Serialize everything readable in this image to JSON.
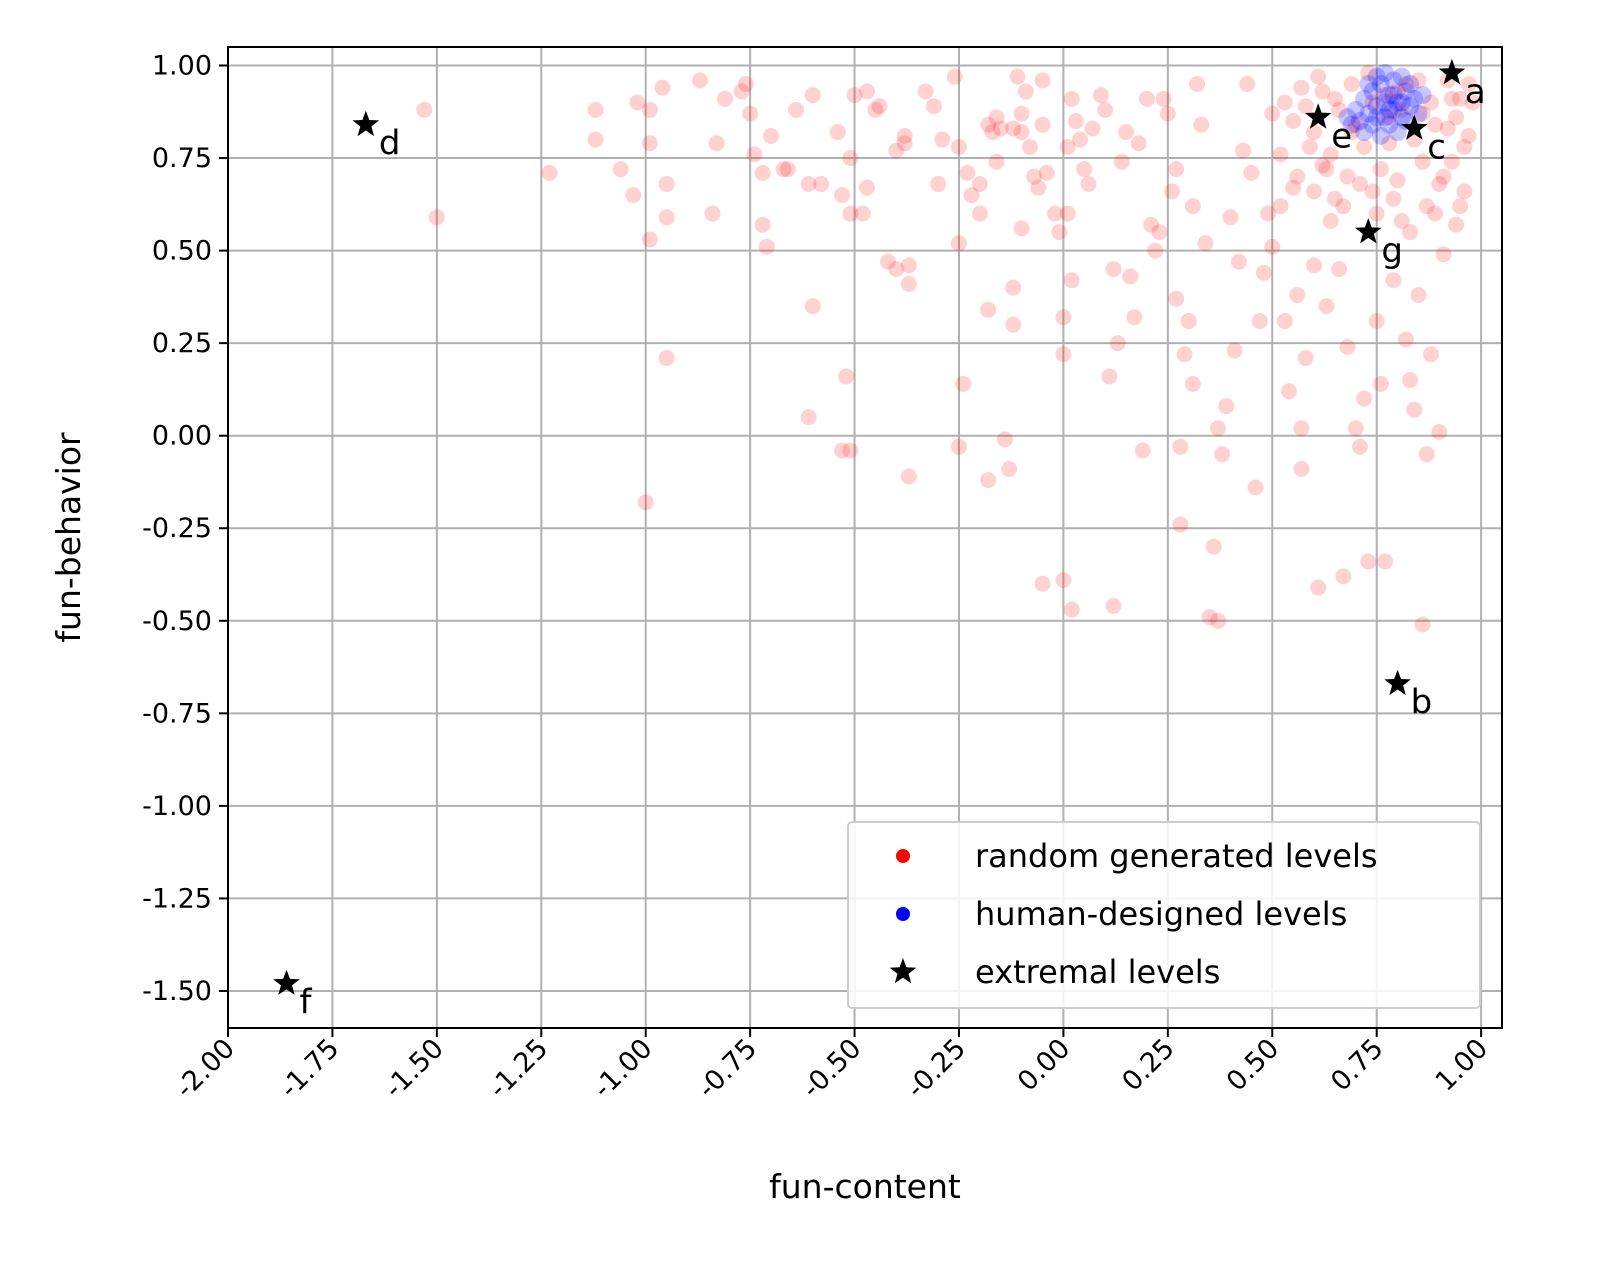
{
  "chart_data": {
    "type": "scatter",
    "title": "",
    "xlabel": "fun-content",
    "ylabel": "fun-behavior",
    "xlim": [
      -2.0,
      1.05
    ],
    "ylim": [
      -1.6,
      1.05
    ],
    "grid": true,
    "legend_position": "bottom-right",
    "x_ticks": [
      -2.0,
      -1.75,
      -1.5,
      -1.25,
      -1.0,
      -0.75,
      -0.5,
      -0.25,
      0.0,
      0.25,
      0.5,
      0.75,
      1.0
    ],
    "x_tick_labels": [
      "-2.00",
      "-1.75",
      "-1.50",
      "-1.25",
      "-1.00",
      "-0.75",
      "-0.50",
      "-0.25",
      "0.00",
      "0.25",
      "0.50",
      "0.75",
      "1.00"
    ],
    "y_ticks": [
      1.0,
      0.75,
      0.5,
      0.25,
      0.0,
      -0.25,
      -0.5,
      -0.75,
      -1.0,
      -1.25,
      -1.5
    ],
    "y_tick_labels": [
      "1.00",
      "0.75",
      "0.50",
      "0.25",
      "0.00",
      "-0.25",
      "-0.50",
      "-0.75",
      "-1.00",
      "-1.25",
      "-1.50"
    ],
    "series": [
      {
        "name": "random generated levels",
        "color": "#ff0000",
        "marker": "circle",
        "alpha": 0.18,
        "points": [
          [
            -1.53,
            0.88
          ],
          [
            -1.5,
            0.59
          ],
          [
            -1.23,
            0.71
          ],
          [
            -1.12,
            0.88
          ],
          [
            -1.12,
            0.8
          ],
          [
            -1.06,
            0.72
          ],
          [
            -1.03,
            0.65
          ],
          [
            -1.02,
            0.9
          ],
          [
            -0.99,
            0.88
          ],
          [
            -0.99,
            0.79
          ],
          [
            -0.99,
            0.53
          ],
          [
            -0.96,
            0.94
          ],
          [
            -0.95,
            0.68
          ],
          [
            -0.95,
            0.59
          ],
          [
            -0.95,
            0.21
          ],
          [
            -1.0,
            -0.18
          ],
          [
            -0.87,
            0.96
          ],
          [
            -0.84,
            0.6
          ],
          [
            -0.83,
            0.79
          ],
          [
            -0.81,
            0.91
          ],
          [
            -0.77,
            0.93
          ],
          [
            -0.76,
            0.95
          ],
          [
            -0.75,
            0.87
          ],
          [
            -0.74,
            0.76
          ],
          [
            -0.72,
            0.71
          ],
          [
            -0.72,
            0.57
          ],
          [
            -0.71,
            0.51
          ],
          [
            -0.7,
            0.81
          ],
          [
            -0.67,
            0.72
          ],
          [
            -0.66,
            0.72
          ],
          [
            -0.64,
            0.88
          ],
          [
            -0.61,
            0.68
          ],
          [
            -0.6,
            0.92
          ],
          [
            -0.6,
            0.35
          ],
          [
            -0.61,
            0.05
          ],
          [
            -0.58,
            0.68
          ],
          [
            -0.54,
            0.82
          ],
          [
            -0.53,
            0.65
          ],
          [
            -0.51,
            0.75
          ],
          [
            -0.51,
            0.6
          ],
          [
            -0.52,
            0.16
          ],
          [
            -0.51,
            -0.04
          ],
          [
            -0.53,
            -0.04
          ],
          [
            -0.5,
            0.92
          ],
          [
            -0.48,
            0.6
          ],
          [
            -0.47,
            0.67
          ],
          [
            -0.47,
            0.93
          ],
          [
            -0.45,
            0.88
          ],
          [
            -0.44,
            0.89
          ],
          [
            -0.42,
            0.47
          ],
          [
            -0.4,
            0.45
          ],
          [
            -0.4,
            0.77
          ],
          [
            -0.38,
            0.79
          ],
          [
            -0.37,
            0.46
          ],
          [
            -0.37,
            0.41
          ],
          [
            -0.38,
            0.81
          ],
          [
            -0.37,
            -0.11
          ],
          [
            -0.33,
            0.93
          ],
          [
            -0.31,
            0.89
          ],
          [
            -0.3,
            0.68
          ],
          [
            -0.29,
            0.8
          ],
          [
            -0.26,
            0.97
          ],
          [
            -0.25,
            0.78
          ],
          [
            -0.25,
            0.52
          ],
          [
            -0.24,
            0.14
          ],
          [
            -0.25,
            -0.03
          ],
          [
            -0.23,
            0.71
          ],
          [
            -0.22,
            0.65
          ],
          [
            -0.2,
            0.68
          ],
          [
            -0.2,
            0.6
          ],
          [
            -0.18,
            0.84
          ],
          [
            -0.18,
            0.34
          ],
          [
            -0.18,
            -0.12
          ],
          [
            -0.17,
            0.82
          ],
          [
            -0.16,
            0.86
          ],
          [
            -0.16,
            0.74
          ],
          [
            -0.15,
            0.83
          ],
          [
            -0.14,
            -0.01
          ],
          [
            -0.13,
            -0.09
          ],
          [
            -0.12,
            0.3
          ],
          [
            -0.12,
            0.4
          ],
          [
            -0.12,
            0.83
          ],
          [
            -0.11,
            0.97
          ],
          [
            -0.1,
            0.87
          ],
          [
            -0.1,
            0.82
          ],
          [
            -0.1,
            0.56
          ],
          [
            -0.09,
            0.93
          ],
          [
            -0.08,
            0.78
          ],
          [
            -0.07,
            0.7
          ],
          [
            -0.06,
            0.67
          ],
          [
            -0.05,
            0.84
          ],
          [
            -0.05,
            0.96
          ],
          [
            -0.04,
            0.71
          ],
          [
            -0.05,
            -0.4
          ],
          [
            -0.02,
            0.6
          ],
          [
            -0.01,
            0.55
          ],
          [
            0.0,
            0.32
          ],
          [
            0.0,
            0.22
          ],
          [
            0.0,
            -0.39
          ],
          [
            0.02,
            0.42
          ],
          [
            0.02,
            -0.47
          ],
          [
            0.01,
            0.6
          ],
          [
            0.01,
            0.78
          ],
          [
            0.02,
            0.91
          ],
          [
            0.03,
            0.85
          ],
          [
            0.04,
            0.8
          ],
          [
            0.05,
            0.72
          ],
          [
            0.06,
            0.68
          ],
          [
            0.07,
            0.83
          ],
          [
            0.09,
            0.92
          ],
          [
            0.1,
            0.88
          ],
          [
            0.11,
            0.16
          ],
          [
            0.12,
            0.45
          ],
          [
            0.12,
            -0.46
          ],
          [
            0.13,
            0.25
          ],
          [
            0.14,
            0.74
          ],
          [
            0.15,
            0.82
          ],
          [
            0.16,
            0.43
          ],
          [
            0.17,
            0.32
          ],
          [
            0.18,
            0.79
          ],
          [
            0.19,
            -0.04
          ],
          [
            0.2,
            0.91
          ],
          [
            0.21,
            0.57
          ],
          [
            0.22,
            0.5
          ],
          [
            0.23,
            0.55
          ],
          [
            0.24,
            0.91
          ],
          [
            0.25,
            0.87
          ],
          [
            0.26,
            0.66
          ],
          [
            0.27,
            0.72
          ],
          [
            0.27,
            0.37
          ],
          [
            0.28,
            -0.03
          ],
          [
            0.28,
            -0.24
          ],
          [
            0.29,
            0.22
          ],
          [
            0.3,
            0.31
          ],
          [
            0.31,
            0.62
          ],
          [
            0.31,
            0.14
          ],
          [
            0.32,
            0.95
          ],
          [
            0.33,
            0.84
          ],
          [
            0.34,
            0.52
          ],
          [
            0.35,
            -0.49
          ],
          [
            0.36,
            -0.3
          ],
          [
            0.37,
            0.02
          ],
          [
            0.37,
            -0.5
          ],
          [
            0.38,
            -0.05
          ],
          [
            0.39,
            0.08
          ],
          [
            0.4,
            0.59
          ],
          [
            0.41,
            0.23
          ],
          [
            0.42,
            0.47
          ],
          [
            0.43,
            0.77
          ],
          [
            0.44,
            0.95
          ],
          [
            0.45,
            0.71
          ],
          [
            0.46,
            -0.14
          ],
          [
            0.47,
            0.31
          ],
          [
            0.48,
            0.44
          ],
          [
            0.49,
            0.6
          ],
          [
            0.5,
            0.87
          ],
          [
            0.5,
            0.51
          ],
          [
            0.52,
            0.62
          ],
          [
            0.53,
            0.31
          ],
          [
            0.54,
            0.12
          ],
          [
            0.55,
            0.67
          ],
          [
            0.56,
            0.38
          ],
          [
            0.57,
            -0.09
          ],
          [
            0.57,
            0.02
          ],
          [
            0.58,
            0.21
          ],
          [
            0.59,
            0.78
          ],
          [
            0.6,
            0.46
          ],
          [
            0.61,
            -0.41
          ],
          [
            0.62,
            0.73
          ],
          [
            0.63,
            0.35
          ],
          [
            0.64,
            0.58
          ],
          [
            0.65,
            0.64
          ],
          [
            0.66,
            0.45
          ],
          [
            0.67,
            -0.38
          ],
          [
            0.68,
            0.24
          ],
          [
            0.69,
            0.82
          ],
          [
            0.7,
            0.02
          ],
          [
            0.71,
            -0.03
          ],
          [
            0.72,
            0.1
          ],
          [
            0.73,
            -0.34
          ],
          [
            0.74,
            0.66
          ],
          [
            0.75,
            0.31
          ],
          [
            0.76,
            0.14
          ],
          [
            0.77,
            -0.34
          ],
          [
            0.78,
            0.79
          ],
          [
            0.79,
            0.42
          ],
          [
            0.8,
            0.93
          ],
          [
            0.81,
            0.58
          ],
          [
            0.82,
            0.26
          ],
          [
            0.83,
            0.15
          ],
          [
            0.84,
            0.07
          ],
          [
            0.85,
            0.38
          ],
          [
            0.86,
            -0.51
          ],
          [
            0.86,
            0.87
          ],
          [
            0.87,
            -0.05
          ],
          [
            0.88,
            0.22
          ],
          [
            0.89,
            0.6
          ],
          [
            0.9,
            0.01
          ],
          [
            0.91,
            0.49
          ],
          [
            0.92,
            0.83
          ],
          [
            0.93,
            0.74
          ],
          [
            0.94,
            0.57
          ],
          [
            0.95,
            0.91
          ],
          [
            0.96,
            0.66
          ],
          [
            0.97,
            0.81
          ],
          [
            0.55,
            0.85
          ],
          [
            0.58,
            0.89
          ],
          [
            0.6,
            0.82
          ],
          [
            0.62,
            0.93
          ],
          [
            0.64,
            0.76
          ],
          [
            0.66,
            0.88
          ],
          [
            0.68,
            0.7
          ],
          [
            0.7,
            0.84
          ],
          [
            0.72,
            0.78
          ],
          [
            0.74,
            0.9
          ],
          [
            0.76,
            0.72
          ],
          [
            0.78,
            0.86
          ],
          [
            0.8,
            0.69
          ],
          [
            0.82,
            0.95
          ],
          [
            0.84,
            0.8
          ],
          [
            0.86,
            0.74
          ],
          [
            0.88,
            0.9
          ],
          [
            0.9,
            0.68
          ],
          [
            0.92,
            0.96
          ],
          [
            0.94,
            0.86
          ],
          [
            0.96,
            0.78
          ],
          [
            0.98,
            0.9
          ],
          [
            0.52,
            0.76
          ],
          [
            0.56,
            0.7
          ],
          [
            0.6,
            0.66
          ],
          [
            0.63,
            0.72
          ],
          [
            0.67,
            0.62
          ],
          [
            0.71,
            0.68
          ],
          [
            0.75,
            0.6
          ],
          [
            0.79,
            0.64
          ],
          [
            0.83,
            0.55
          ],
          [
            0.87,
            0.62
          ],
          [
            0.91,
            0.7
          ],
          [
            0.95,
            0.62
          ],
          [
            0.53,
            0.9
          ],
          [
            0.57,
            0.94
          ],
          [
            0.61,
            0.97
          ],
          [
            0.65,
            0.91
          ],
          [
            0.69,
            0.95
          ],
          [
            0.73,
            0.98
          ],
          [
            0.77,
            0.92
          ],
          [
            0.81,
            0.88
          ],
          [
            0.85,
            0.96
          ],
          [
            0.89,
            0.84
          ],
          [
            0.93,
            0.91
          ],
          [
            0.97,
            0.95
          ]
        ]
      },
      {
        "name": "human-designed levels",
        "color": "#0000ff",
        "marker": "circle",
        "alpha": 0.22,
        "points": [
          [
            0.7,
            0.88
          ],
          [
            0.71,
            0.85
          ],
          [
            0.72,
            0.91
          ],
          [
            0.73,
            0.87
          ],
          [
            0.74,
            0.93
          ],
          [
            0.75,
            0.89
          ],
          [
            0.76,
            0.95
          ],
          [
            0.77,
            0.86
          ],
          [
            0.78,
            0.92
          ],
          [
            0.79,
            0.88
          ],
          [
            0.8,
            0.9
          ],
          [
            0.81,
            0.86
          ],
          [
            0.82,
            0.93
          ],
          [
            0.83,
            0.89
          ],
          [
            0.84,
            0.91
          ],
          [
            0.85,
            0.87
          ],
          [
            0.72,
            0.82
          ],
          [
            0.74,
            0.84
          ],
          [
            0.76,
            0.81
          ],
          [
            0.78,
            0.84
          ],
          [
            0.8,
            0.82
          ],
          [
            0.82,
            0.85
          ],
          [
            0.75,
            0.97
          ],
          [
            0.77,
            0.98
          ],
          [
            0.79,
            0.96
          ],
          [
            0.81,
            0.97
          ],
          [
            0.73,
            0.95
          ],
          [
            0.69,
            0.84
          ],
          [
            0.68,
            0.86
          ],
          [
            0.86,
            0.92
          ],
          [
            0.83,
            0.95
          ],
          [
            0.77,
            0.9
          ],
          [
            0.79,
            0.92
          ],
          [
            0.81,
            0.9
          ],
          [
            0.75,
            0.86
          ],
          [
            0.78,
            0.88
          ]
        ]
      },
      {
        "name": "extremal levels",
        "color": "#000000",
        "marker": "star",
        "points": [
          [
            0.93,
            0.98
          ],
          [
            0.8,
            -0.67
          ],
          [
            0.84,
            0.83
          ],
          [
            -1.67,
            0.84
          ],
          [
            0.61,
            0.86
          ],
          [
            -1.86,
            -1.48
          ],
          [
            0.73,
            0.55
          ]
        ],
        "point_labels": [
          "a",
          "b",
          "c",
          "d",
          "e",
          "f",
          "g"
        ]
      }
    ]
  }
}
